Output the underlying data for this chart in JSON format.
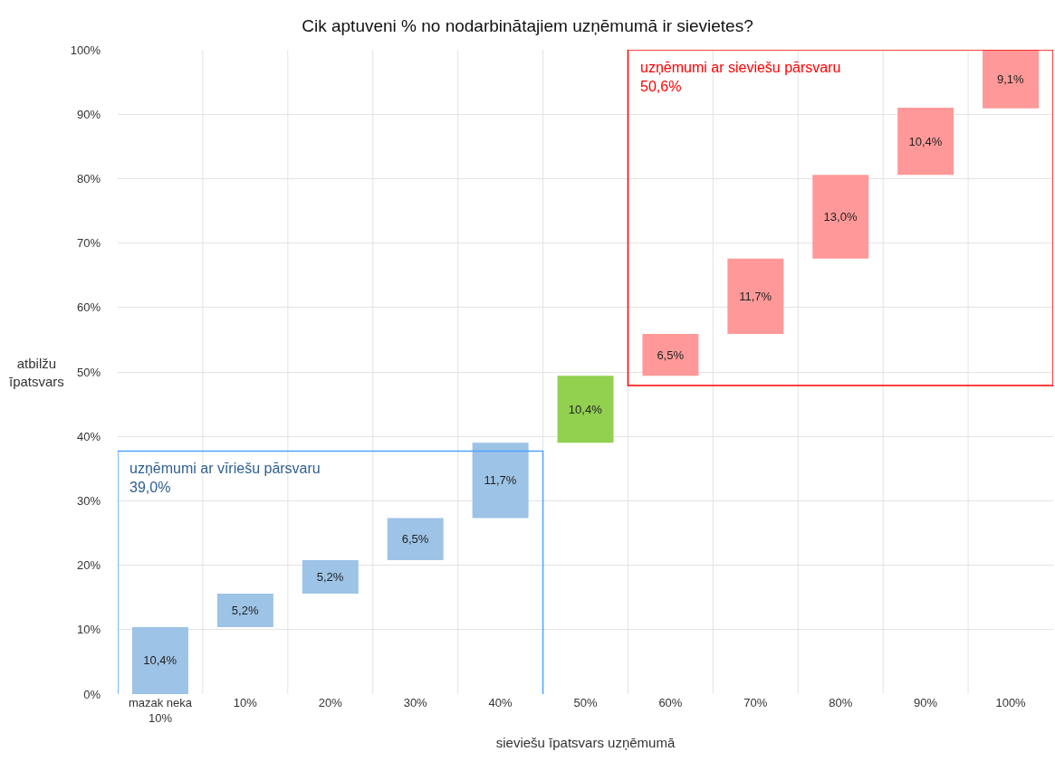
{
  "chart_data": {
    "type": "bar",
    "title": "Cik aptuveni % no nodarbinātajiem uzņēmumā ir sievietes?",
    "xlabel": "sieviešu īpatsvars uzņēmumā",
    "ylabel": "atbilžu\nīpatsvars",
    "categories": [
      "mazak neka\n10%",
      "10%",
      "20%",
      "30%",
      "40%",
      "50%",
      "60%",
      "70%",
      "80%",
      "90%",
      "100%"
    ],
    "values": [
      10.4,
      5.2,
      5.2,
      6.5,
      11.7,
      10.4,
      6.5,
      11.7,
      13.0,
      10.4,
      9.1
    ],
    "base": [
      0,
      10.4,
      15.6,
      20.8,
      27.3,
      39.0,
      49.4,
      55.9,
      67.6,
      80.6,
      90.9
    ],
    "colors": [
      "#9dc3e6",
      "#9dc3e6",
      "#9dc3e6",
      "#9dc3e6",
      "#9dc3e6",
      "#92d050",
      "#ff9999",
      "#ff9999",
      "#ff9999",
      "#ff9999",
      "#ff9999"
    ],
    "value_labels": [
      "10,4%",
      "5,2%",
      "5,2%",
      "6,5%",
      "11,7%",
      "10,4%",
      "6,5%",
      "11,7%",
      "13,0%",
      "10,4%",
      "9,1%"
    ],
    "ylim": [
      0,
      100
    ],
    "yticks": [
      {
        "value": 0,
        "label": "0%"
      },
      {
        "value": 10,
        "label": "10%"
      },
      {
        "value": 20,
        "label": "20%"
      },
      {
        "value": 30,
        "label": "30%"
      },
      {
        "value": 40,
        "label": "40%"
      },
      {
        "value": 50,
        "label": "50%"
      },
      {
        "value": 60,
        "label": "60%"
      },
      {
        "value": 70,
        "label": "70%"
      },
      {
        "value": 80,
        "label": "80%"
      },
      {
        "value": 90,
        "label": "90%"
      },
      {
        "value": 100,
        "label": "100%"
      }
    ],
    "grid": true,
    "annotations": [
      "uzņēmumi ar vīriešu pārsvaru\n39,0%",
      "uzņēmumi ar sieviešu pārsvaru\n50,6%"
    ]
  }
}
